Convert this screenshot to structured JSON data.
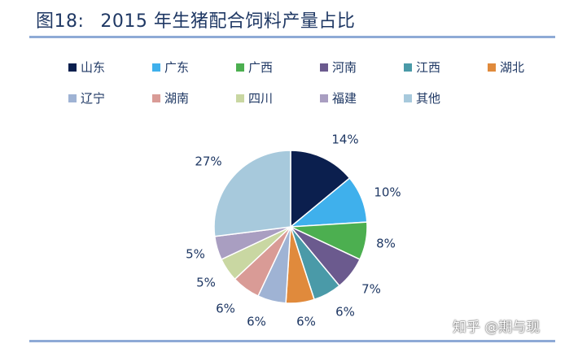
{
  "title": {
    "number": "图18:",
    "text": "2015 年生猪配合饲料产量占比"
  },
  "watermark": "知乎 @期与现",
  "chart_data": {
    "type": "pie",
    "title": "2015 年生猪配合饲料产量占比",
    "legend_position": "top",
    "slices": [
      {
        "name": "山东",
        "value": 14,
        "label": "14%",
        "color": "#0b1f4e"
      },
      {
        "name": "广东",
        "value": 10,
        "label": "10%",
        "color": "#3fb0ec"
      },
      {
        "name": "广西",
        "value": 8,
        "label": "8%",
        "color": "#4caf50"
      },
      {
        "name": "河南",
        "value": 7,
        "label": "7%",
        "color": "#6b5a8e"
      },
      {
        "name": "江西",
        "value": 6,
        "label": "6%",
        "color": "#4a9aa8"
      },
      {
        "name": "湖北",
        "value": 6,
        "label": "6%",
        "color": "#e08a3c"
      },
      {
        "name": "辽宁",
        "value": 6,
        "label": "6%",
        "color": "#9fb3d4"
      },
      {
        "name": "湖南",
        "value": 6,
        "label": "6%",
        "color": "#d99b96"
      },
      {
        "name": "四川",
        "value": 5,
        "label": "5%",
        "color": "#c9d7a2"
      },
      {
        "name": "福建",
        "value": 5,
        "label": "5%",
        "color": "#a99ec1"
      },
      {
        "name": "其他",
        "value": 27,
        "label": "27%",
        "color": "#a7c9dc"
      }
    ]
  }
}
